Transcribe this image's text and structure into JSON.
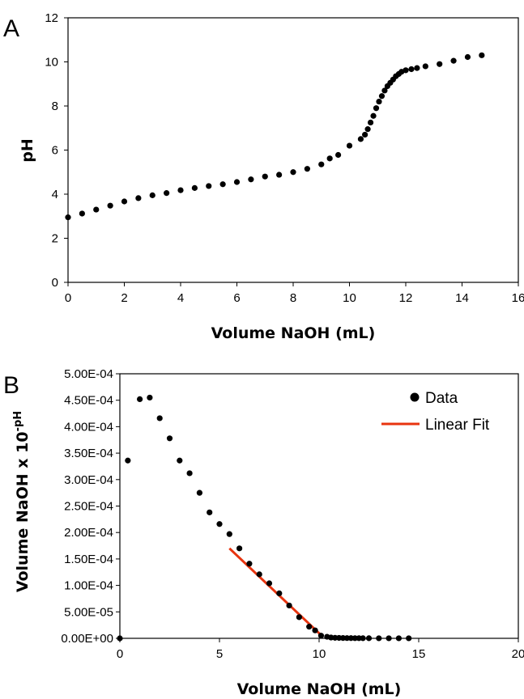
{
  "panels": [
    {
      "label": "A",
      "xlabel": "Volume NaOH (mL)",
      "ylabel": "pH"
    },
    {
      "label": "B",
      "xlabel": "Volume NaOH (mL)",
      "ylabel_main": "Volume NaOH x 10",
      "ylabel_sup": "-pH",
      "legend": [
        "Data",
        "Linear Fit"
      ]
    }
  ],
  "colors": {
    "data": "#000000",
    "fit": "#e8340f"
  },
  "chart_data": [
    {
      "type": "scatter",
      "title": "",
      "xlabel": "Volume NaOH (mL)",
      "ylabel": "pH",
      "xlim": [
        0,
        16
      ],
      "ylim": [
        0,
        12
      ],
      "xticks": [
        "0",
        "2",
        "4",
        "6",
        "8",
        "10",
        "12",
        "14",
        "16"
      ],
      "yticks": [
        "0",
        "2",
        "4",
        "6",
        "8",
        "10",
        "12"
      ],
      "grid": false,
      "series": [
        {
          "x": [
            0,
            0.5,
            1,
            1.5,
            2,
            2.5,
            3,
            3.5,
            4,
            4.5,
            5,
            5.5,
            6,
            6.5,
            7,
            7.5,
            8,
            8.5,
            9,
            9.3,
            9.6,
            10,
            10.4,
            10.55,
            10.65,
            10.75,
            10.85,
            10.95,
            11.05,
            11.15,
            11.25,
            11.35,
            11.45,
            11.55,
            11.65,
            11.75,
            11.85,
            12.0,
            12.2,
            12.4,
            12.7,
            13.2,
            13.7,
            14.2,
            14.7
          ],
          "y": [
            2.95,
            3.12,
            3.3,
            3.48,
            3.67,
            3.82,
            3.95,
            4.05,
            4.18,
            4.28,
            4.37,
            4.45,
            4.55,
            4.67,
            4.8,
            4.88,
            5.0,
            5.15,
            5.35,
            5.62,
            5.78,
            6.2,
            6.5,
            6.7,
            6.95,
            7.25,
            7.55,
            7.9,
            8.2,
            8.45,
            8.7,
            8.9,
            9.05,
            9.2,
            9.35,
            9.45,
            9.55,
            9.62,
            9.67,
            9.72,
            9.8,
            9.9,
            10.05,
            10.22,
            10.3
          ]
        }
      ]
    },
    {
      "type": "scatter",
      "title": "",
      "xlabel": "Volume NaOH (mL)",
      "ylabel": "Volume NaOH x 10^-pH",
      "xlim": [
        0,
        20
      ],
      "ylim": [
        0,
        0.0005
      ],
      "xticks": [
        "0",
        "5",
        "10",
        "15",
        "20"
      ],
      "yticks": [
        "0.00E+00",
        "5.00E-05",
        "1.00E-04",
        "1.50E-04",
        "2.00E-04",
        "2.50E-04",
        "3.00E-04",
        "3.50E-04",
        "4.00E-04",
        "4.50E-04",
        "5.00E-04"
      ],
      "grid": false,
      "legend_position": "top-right",
      "series": [
        {
          "name": "Data",
          "x": [
            0,
            0.4,
            1.0,
            1.5,
            2.0,
            2.5,
            3.0,
            3.5,
            4.0,
            4.5,
            5.0,
            5.5,
            6.0,
            6.5,
            7.0,
            7.5,
            8.0,
            8.5,
            9.0,
            9.5,
            9.8,
            10.1,
            10.4,
            10.6,
            10.8,
            11.0,
            11.2,
            11.4,
            11.6,
            11.8,
            12.0,
            12.2,
            12.5,
            13.0,
            13.5,
            14.0,
            14.5
          ],
          "y": [
            0.0,
            0.000336,
            0.000452,
            0.000455,
            0.000416,
            0.000378,
            0.000336,
            0.000312,
            0.000275,
            0.000238,
            0.000216,
            0.000197,
            0.00017,
            0.000141,
            0.000121,
            0.000104,
            8.5e-05,
            6.2e-05,
            4e-05,
            2.2e-05,
            1.5e-05,
            5e-06,
            3e-06,
            1.5e-06,
            1e-06,
            8e-07,
            6e-07,
            5e-07,
            4e-07,
            3e-07,
            3e-07,
            2e-07,
            2e-07,
            1e-07,
            1e-07,
            1e-07,
            1e-07
          ]
        },
        {
          "name": "Linear Fit",
          "type": "line",
          "x": [
            5.5,
            10.1
          ],
          "y": [
            0.00017,
            6e-06
          ]
        }
      ]
    }
  ]
}
